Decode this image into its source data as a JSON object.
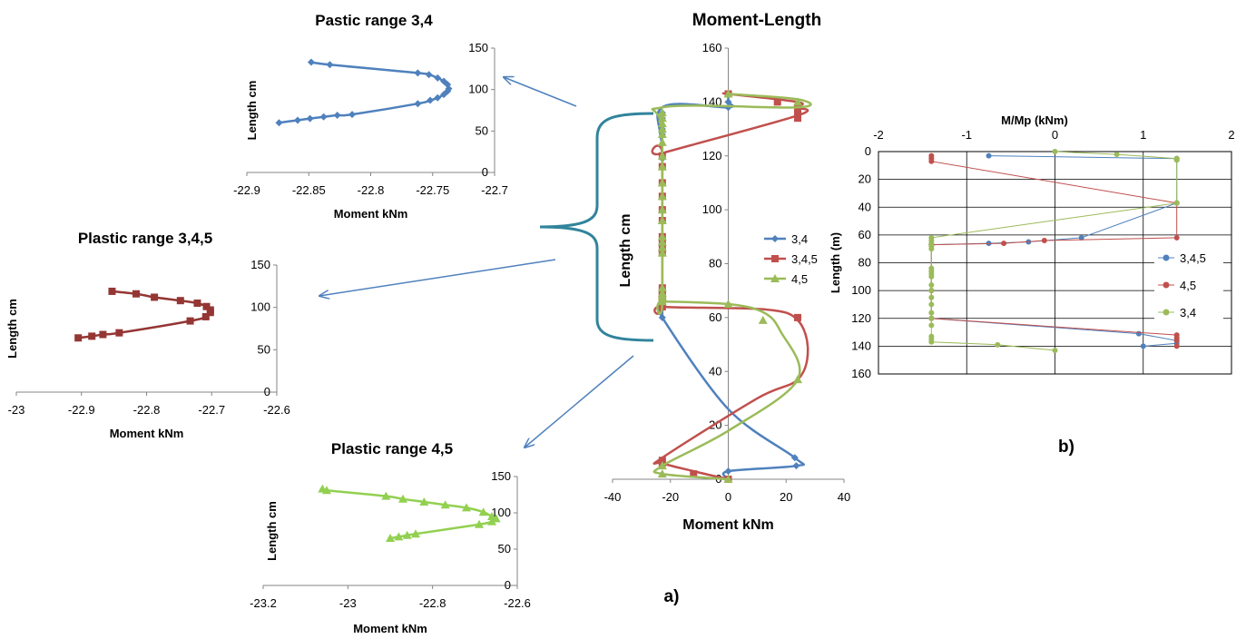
{
  "figure_labels": {
    "a": "a)",
    "b": "b)"
  },
  "chart_data": [
    {
      "id": "p34",
      "type": "line",
      "title": "Pastic range 3,4",
      "xlabel": "Moment kNm",
      "ylabel": "Length cm",
      "xlim": [
        -22.9,
        -22.7
      ],
      "ylim": [
        0,
        150
      ],
      "xticks": [
        -22.9,
        -22.85,
        -22.8,
        -22.75,
        -22.7
      ],
      "yticks": [
        0,
        50,
        100,
        150
      ],
      "xtick_labels": [
        "-22.9",
        "-22.85",
        "-22.8",
        "-22.75",
        "-22.7"
      ],
      "ytick_labels": [
        "0",
        "50",
        "100",
        "150"
      ],
      "grid": false,
      "series": [
        {
          "color": "#4F81BD",
          "marker": "diamond",
          "x": [
            -22.848,
            -22.833,
            -22.762,
            -22.753,
            -22.746,
            -22.741,
            -22.738,
            -22.737,
            -22.738,
            -22.741,
            -22.746,
            -22.752,
            -22.762,
            -22.815,
            -22.827,
            -22.838,
            -22.849,
            -22.859,
            -22.874
          ],
          "y": [
            133,
            130,
            120,
            118,
            114,
            110,
            106,
            101,
            98,
            94,
            90,
            87,
            83,
            70,
            69,
            67,
            65,
            63,
            60
          ]
        }
      ]
    },
    {
      "id": "p345",
      "type": "line",
      "title": "Plastic range 3,4,5",
      "xlabel": "Moment kNm",
      "ylabel": "Length cm",
      "xlim": [
        -23,
        -22.6
      ],
      "ylim": [
        0,
        150
      ],
      "xticks": [
        -23,
        -22.9,
        -22.8,
        -22.7,
        -22.6
      ],
      "yticks": [
        0,
        50,
        100,
        150
      ],
      "xtick_labels": [
        "-23",
        "-22.9",
        "-22.8",
        "-22.7",
        "-22.6"
      ],
      "ytick_labels": [
        "0",
        "50",
        "100",
        "150"
      ],
      "grid": false,
      "series": [
        {
          "color": "#943634",
          "marker": "square",
          "x": [
            -22.853,
            -22.816,
            -22.788,
            -22.748,
            -22.722,
            -22.708,
            -22.702,
            -22.702,
            -22.709,
            -22.733,
            -22.842,
            -22.867,
            -22.884,
            -22.905
          ],
          "y": [
            119,
            116,
            112,
            108,
            105,
            101,
            97,
            94,
            89,
            84,
            70,
            68,
            66,
            64
          ]
        }
      ]
    },
    {
      "id": "p45",
      "type": "line",
      "title": "Plastic range 4,5",
      "xlabel": "Moment kNm",
      "ylabel": "Length cm",
      "xlim": [
        -23.2,
        -22.6
      ],
      "ylim": [
        0,
        150
      ],
      "xticks": [
        -23.2,
        -23,
        -22.8,
        -22.6
      ],
      "yticks": [
        0,
        50,
        100,
        150
      ],
      "xtick_labels": [
        "-23.2",
        "-23",
        "-22.8",
        "-22.6"
      ],
      "ytick_labels": [
        "0",
        "50",
        "100",
        "150"
      ],
      "grid": false,
      "series": [
        {
          "color": "#92D050",
          "marker": "triangle",
          "x": [
            -23.06,
            -23.05,
            -22.91,
            -22.87,
            -22.82,
            -22.77,
            -22.72,
            -22.68,
            -22.66,
            -22.65,
            -22.66,
            -22.69,
            -22.84,
            -22.86,
            -22.88,
            -22.9
          ],
          "y": [
            133,
            131,
            123,
            119,
            115,
            111,
            107,
            101,
            95,
            92,
            88,
            84,
            71,
            69,
            67,
            65
          ]
        }
      ]
    },
    {
      "id": "main",
      "type": "line",
      "title": "Moment-Length",
      "xlabel": "Moment kNm",
      "ylabel": "Length cm",
      "xlim": [
        -40,
        40
      ],
      "ylim": [
        0,
        160
      ],
      "xticks": [
        -40,
        -20,
        0,
        20,
        40
      ],
      "yticks": [
        0,
        20,
        40,
        60,
        80,
        100,
        120,
        140,
        160
      ],
      "xtick_labels": [
        "-40",
        "-20",
        "0",
        "20",
        "40"
      ],
      "ytick_labels": [
        "0",
        "20",
        "40",
        "60",
        "80",
        "100",
        "120",
        "140",
        "160"
      ],
      "grid": false,
      "legend_position": "right",
      "series": [
        {
          "name": "3,4",
          "color": "#4F81BD",
          "marker": "diamond",
          "x": [
            0,
            0,
            23.5,
            23,
            0,
            -22.8,
            -22.8,
            -22.8,
            -22.8,
            -22.8,
            0,
            0,
            0
          ],
          "y": [
            0,
            3,
            5,
            8,
            26,
            60,
            64,
            65,
            120,
            138,
            138,
            140,
            143
          ],
          "mx": [
            0,
            23.5,
            23,
            -22.8,
            -22.8,
            -22.8,
            -22.8,
            -22.8,
            -22.8,
            -22.8,
            -22.8,
            -22.8,
            -22.8,
            -22.8,
            -22.8,
            -22.8,
            0,
            0
          ],
          "my": [
            3,
            5,
            8,
            60,
            64,
            65,
            66,
            67,
            68,
            69,
            70,
            119,
            128,
            130,
            134,
            136,
            138,
            140
          ]
        },
        {
          "name": "3,4,5",
          "color": "#C0504D",
          "marker": "square",
          "x": [
            0,
            -12,
            -22.8,
            -22.8,
            10,
            24,
            27.5,
            24,
            13,
            -22.8,
            -22.8,
            -22.8,
            -22.8,
            24,
            24,
            24,
            0,
            0
          ],
          "y": [
            0,
            3,
            6,
            8,
            30,
            37,
            48,
            59,
            63,
            64,
            66,
            120,
            121,
            135,
            138,
            140,
            143,
            143
          ],
          "mx": [
            0,
            -12,
            -22.8,
            -22.8,
            24,
            -22.8,
            -22.8,
            -22.8,
            -22.8,
            -22.8,
            -22.8,
            -22.8,
            -22.8,
            -22.8,
            -22.8,
            -22.8,
            -22.8,
            -22.8,
            -22.8,
            -22.8,
            -22.8,
            24,
            24,
            24,
            17,
            0
          ],
          "my": [
            0,
            2,
            6,
            7,
            60,
            64,
            66,
            67,
            68,
            69,
            71,
            84,
            86,
            88,
            90,
            96,
            100,
            105,
            110,
            116,
            120,
            134,
            136,
            138,
            140,
            143
          ]
        },
        {
          "name": "4,5",
          "color": "#9BBB59",
          "marker": "triangle",
          "x": [
            0,
            -22.8,
            -22.8,
            0,
            24,
            18,
            12,
            0,
            -22.8,
            -22.8,
            -22.8,
            -22.8,
            24,
            24,
            0
          ],
          "y": [
            0,
            2,
            5,
            18,
            37,
            55,
            62,
            65,
            66,
            66,
            128,
            138,
            138,
            141,
            143
          ],
          "mx": [
            0,
            -22.8,
            -22.8,
            24,
            12,
            0,
            -22.8,
            -22.8,
            -22.8,
            -22.8,
            -22.8,
            -22.8,
            -22.8,
            -22.8,
            -22.8,
            -22.8,
            -22.8,
            -22.8,
            -22.8,
            -22.8,
            -22.8,
            -22.8,
            -22.8,
            -22.8,
            -22.8,
            -22.8,
            -22.8,
            24,
            0
          ],
          "my": [
            0,
            2,
            5,
            37,
            59,
            65,
            66,
            67,
            68,
            69,
            71,
            84,
            86,
            88,
            90,
            96,
            100,
            105,
            110,
            116,
            120,
            125,
            128,
            130,
            132,
            134,
            136,
            140,
            143
          ]
        }
      ]
    },
    {
      "id": "mmp",
      "type": "line",
      "title": "M/Mp (kNm)",
      "xlabel": "",
      "ylabel": "Length (m)",
      "xlim": [
        -2,
        2
      ],
      "ylim": [
        0,
        160
      ],
      "y_inverted": true,
      "x_axis_position": "top",
      "xticks": [
        -2,
        -1,
        0,
        1,
        2
      ],
      "yticks": [
        0,
        20,
        40,
        60,
        80,
        100,
        120,
        140,
        160
      ],
      "xtick_labels": [
        "-2",
        "-1",
        "0",
        "1",
        "2"
      ],
      "ytick_labels": [
        "0",
        "20",
        "40",
        "60",
        "80",
        "100",
        "120",
        "140",
        "160"
      ],
      "grid": true,
      "legend_position": "right",
      "series": [
        {
          "name": "3,4,5",
          "color": "#4F81BD",
          "marker": "circle",
          "x": [
            -0.75,
            1.38,
            1.38,
            1.38,
            0.3,
            -0.3,
            -0.75,
            -1.4,
            -1.4,
            -1.4,
            0.95,
            1.38,
            1.38,
            1.0
          ],
          "y": [
            3,
            5,
            6,
            37,
            62,
            65,
            66,
            67,
            100,
            120,
            131,
            136,
            138,
            140
          ]
        },
        {
          "name": "4,5",
          "color": "#C0504D",
          "marker": "circle",
          "x": [
            -1.4,
            -1.4,
            -1.4,
            1.38,
            1.38,
            -0.12,
            -0.58,
            -1.4,
            -1.4,
            -1.4,
            1.38,
            1.38,
            1.38,
            1.38
          ],
          "y": [
            3,
            5,
            7,
            37,
            62,
            64,
            66,
            67,
            100,
            120,
            132,
            134,
            136,
            140
          ]
        },
        {
          "name": "3,4",
          "color": "#9BBB59",
          "marker": "circle",
          "x": [
            0,
            0.7,
            1.38,
            1.38,
            1.38,
            -1.4,
            -1.4,
            -1.4,
            -1.4,
            -1.4,
            -1.4,
            -1.4,
            -1.4,
            -1.4,
            -1.4,
            -1.4,
            -1.4,
            -1.4,
            -1.4,
            -1.4,
            -1.4,
            -1.4,
            -1.4,
            -1.4,
            -0.65,
            0
          ],
          "y": [
            0,
            2,
            5,
            6,
            37,
            62,
            64,
            66,
            68,
            70,
            84,
            86,
            88,
            90,
            96,
            100,
            105,
            110,
            116,
            120,
            125,
            133,
            135,
            137,
            139,
            143
          ]
        }
      ]
    }
  ]
}
